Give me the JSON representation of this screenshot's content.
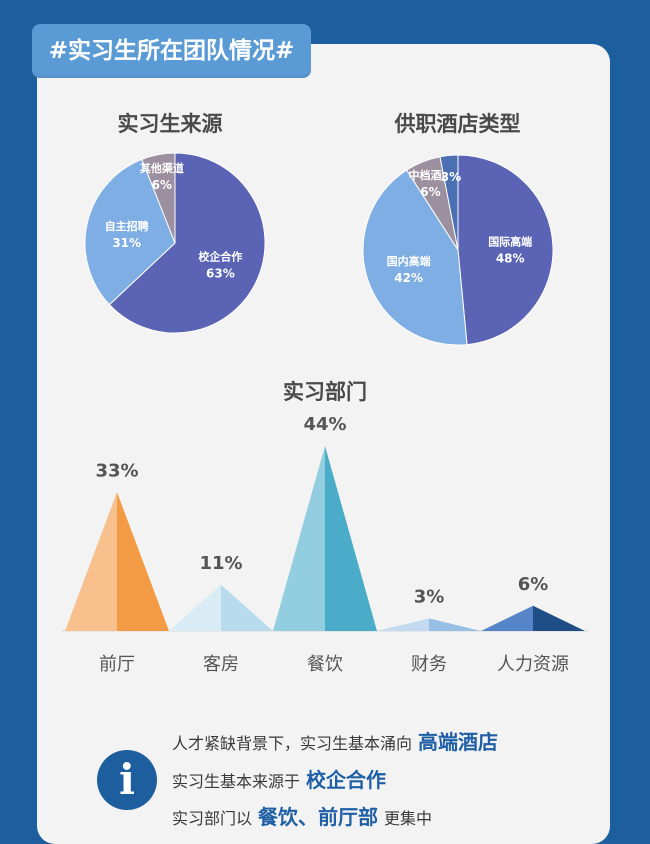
{
  "banner": {
    "title": "#实习生所在团队情况#"
  },
  "chart_data": [
    {
      "type": "pie",
      "title": "实习生来源",
      "slices": [
        {
          "label": "校企合作",
          "value": 63,
          "text": "63%",
          "color": "#5b64b4"
        },
        {
          "label": "自主招聘",
          "value": 31,
          "text": "31%",
          "color": "#7eaee3"
        },
        {
          "label": "其他渠道",
          "value": 6,
          "text": "6%",
          "color": "#9c8fa0"
        }
      ]
    },
    {
      "type": "pie",
      "title": "供职酒店类型",
      "slices": [
        {
          "label": "国际高端",
          "value": 48,
          "text": "48%",
          "color": "#5b64b4"
        },
        {
          "label": "国内高端",
          "value": 42,
          "text": "42%",
          "color": "#7eaee3"
        },
        {
          "label": "中档酒店",
          "value": 6,
          "text": "6%",
          "color": "#9c8fa0"
        },
        {
          "label": "",
          "value": 3,
          "text": "3%",
          "color": "#4a6fb3"
        }
      ]
    },
    {
      "type": "bar",
      "title": "实习部门",
      "categories": [
        "前厅",
        "客房",
        "餐饮",
        "财务",
        "人力资源"
      ],
      "values": [
        33,
        11,
        44,
        3,
        6
      ],
      "value_labels": [
        "33%",
        "11%",
        "44%",
        "3%",
        "6%"
      ],
      "colors": [
        {
          "left": "#f8c08d",
          "right": "#f39a45"
        },
        {
          "left": "#d9ecf5",
          "right": "#b8dcee"
        },
        {
          "left": "#93cde0",
          "right": "#4aacc8"
        },
        {
          "left": "#c3daf0",
          "right": "#96bfe3"
        },
        {
          "left": "#5584c9",
          "right": "#1f4e87"
        }
      ]
    }
  ],
  "info": {
    "icon": "info-icon",
    "line1_text": "人才紧缺背景下，实习生基本涌向",
    "line1_highlight": "高端酒店",
    "line2_text": "实习生基本来源于",
    "line2_highlight": "校企合作",
    "line3_text": "实习部门以",
    "line3_highlight": "餐饮、前厅部",
    "line3_suffix": "更集中"
  }
}
